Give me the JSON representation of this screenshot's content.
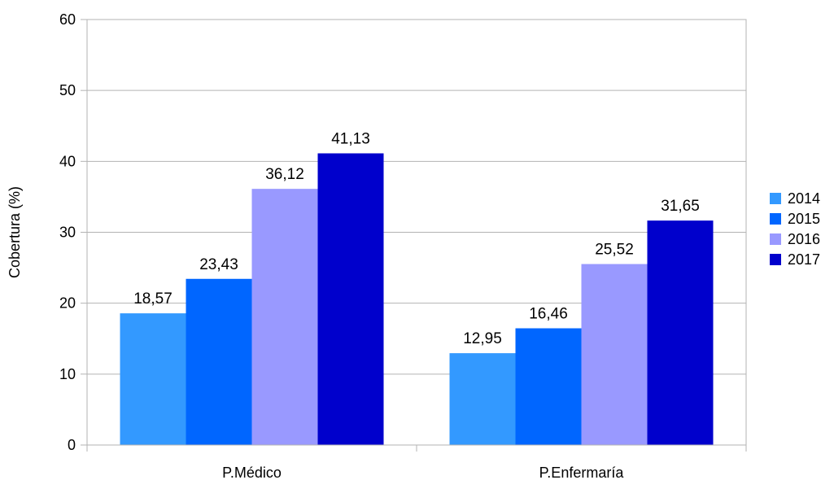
{
  "chart_data": {
    "type": "bar",
    "title": "",
    "xlabel": "",
    "ylabel": "Cobertura (%)",
    "ylim": [
      0,
      60
    ],
    "yticks": [
      0,
      10,
      20,
      30,
      40,
      50,
      60
    ],
    "grid": true,
    "legend_position": "right",
    "categories": [
      "P.Médico",
      "P.Enfermaría"
    ],
    "series": [
      {
        "name": "2014",
        "color": "#3399ff",
        "values": [
          18.57,
          12.95
        ],
        "labels": [
          "18,57",
          "12,95"
        ]
      },
      {
        "name": "2015",
        "color": "#0066ff",
        "values": [
          23.43,
          16.46
        ],
        "labels": [
          "23,43",
          "16,46"
        ]
      },
      {
        "name": "2016",
        "color": "#9999ff",
        "values": [
          36.12,
          25.52
        ],
        "labels": [
          "36,12",
          "25,52"
        ]
      },
      {
        "name": "2017",
        "color": "#0000cc",
        "values": [
          41.13,
          31.65
        ],
        "labels": [
          "41,13",
          "31,65"
        ]
      }
    ]
  }
}
